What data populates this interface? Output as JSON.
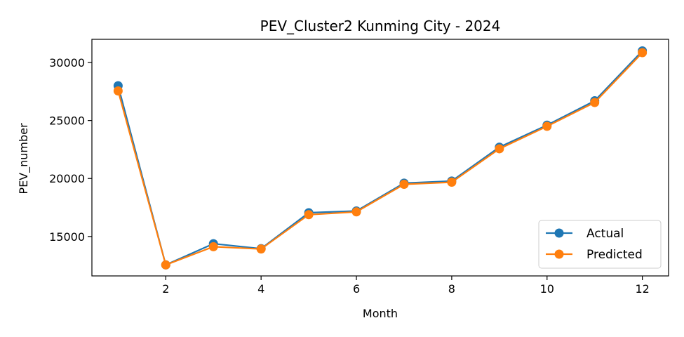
{
  "chart_data": {
    "type": "line",
    "title": "PEV_Cluster2 Kunming City - 2024",
    "xlabel": "Month",
    "ylabel": "PEV_number",
    "x": [
      1,
      2,
      3,
      4,
      5,
      6,
      7,
      8,
      9,
      10,
      11,
      12
    ],
    "xlim": [
      0.45,
      12.55
    ],
    "ylim": [
      11600,
      32000
    ],
    "xticks": [
      2,
      4,
      6,
      8,
      10,
      12
    ],
    "yticks": [
      15000,
      20000,
      25000,
      30000
    ],
    "grid": false,
    "legend_position": "lower-right",
    "series": [
      {
        "name": "Actual",
        "color": "#1f77b4",
        "marker": "circle",
        "values": [
          28000,
          12550,
          14380,
          13950,
          17050,
          17200,
          19600,
          19780,
          22700,
          24600,
          26700,
          31000
        ]
      },
      {
        "name": "Predicted",
        "color": "#ff7f0e",
        "marker": "circle",
        "values": [
          27550,
          12550,
          14120,
          13920,
          16880,
          17120,
          19500,
          19680,
          22560,
          24500,
          26550,
          30850
        ]
      }
    ]
  }
}
